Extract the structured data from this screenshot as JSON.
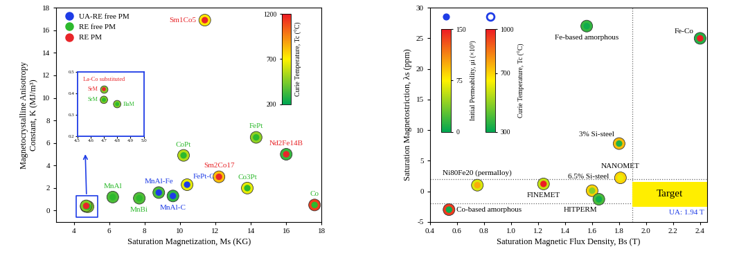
{
  "chart_data": [
    {
      "type": "scatter",
      "xlabel": "Saturation Magnetization, Ms (KG)",
      "ylabel": "Magnetocrystalline Anisotropy\nConstant, K (MJ/m³)",
      "xlim": [
        3,
        18
      ],
      "xticks": [
        4,
        6,
        8,
        10,
        12,
        14,
        16,
        18
      ],
      "ylim": [
        -1,
        18
      ],
      "yticks": [
        0,
        2,
        4,
        6,
        8,
        10,
        12,
        14,
        16,
        18
      ],
      "legend": "upper left",
      "series": [
        {
          "name": "UA-RE free PM",
          "color": "#1e3ce6",
          "x": [
            8.8,
            9.6,
            10.4
          ],
          "y": [
            1.6,
            1.3,
            2.3
          ],
          "labels": [
            "MnAl-Fe",
            "MnAl-C",
            "FePt-C"
          ],
          "curie_temperature": [
            350,
            300,
            650
          ]
        },
        {
          "name": "RE free PM",
          "color": "#2db92d",
          "x": [
            4.7,
            4.8,
            6.2,
            7.7,
            10.2,
            14.3,
            13.8,
            17.6
          ],
          "y": [
            0.37,
            0.35,
            1.2,
            1.1,
            4.9,
            6.5,
            2.0,
            0.5
          ],
          "labels": [
            null,
            null,
            "MnAl",
            "MnBi",
            "CoPt",
            "FePt",
            "Co3Pt",
            "Co"
          ],
          "curie_temperature": [
            450,
            450,
            350,
            360,
            550,
            480,
            650,
            1120
          ]
        },
        {
          "name": "RE PM",
          "color": "#e8262a",
          "x": [
            4.7,
            11.4,
            12.2,
            16.0
          ],
          "y": [
            0.42,
            16.9,
            3.0,
            5.0
          ],
          "labels": [
            null,
            "Sm1Co5",
            "Sm2Co17",
            "Nd2Fe14B"
          ],
          "curie_temperature": [
            450,
            720,
            820,
            310
          ]
        }
      ],
      "colorbars": {
        "curie_temperature": {
          "label": "Curie Temperature, Tc (°C)",
          "range": [
            200,
            1200
          ],
          "ticks": [
            200,
            700,
            1200
          ]
        }
      }
    },
    {
      "type": "scatter",
      "xlim": [
        4.5,
        5.0
      ],
      "xticks": [
        4.5,
        4.6,
        4.7,
        4.8,
        4.9,
        5.0
      ],
      "ylim": [
        0.2,
        0.5
      ],
      "yticks": [
        0.2,
        0.3,
        0.4,
        0.5
      ],
      "series": [
        {
          "name": "RE free PM",
          "color": "#2db92d",
          "x": [
            4.7,
            4.8
          ],
          "y": [
            0.37,
            0.35
          ],
          "labels": [
            "SrM",
            "BaM"
          ],
          "curie_temperature": [
            450,
            450
          ]
        },
        {
          "name": "RE PM",
          "color": "#e8262a",
          "x": [
            4.7
          ],
          "y": [
            0.42
          ],
          "labels": [
            "SrM"
          ],
          "annotation": "La-Co substituted",
          "curie_temperature": [
            450
          ]
        }
      ]
    },
    {
      "type": "scatter",
      "xlabel": "Saturation Magnetic Flux Density, Bs (T)",
      "ylabel": "Saturation Magnetostriction, λs (ppm)",
      "xlim": [
        0.4,
        2.45
      ],
      "xticks": [
        0.4,
        0.6,
        0.8,
        1.0,
        1.2,
        1.4,
        1.6,
        1.8,
        2.0,
        2.2,
        2.4
      ],
      "ylim": [
        -5,
        30
      ],
      "yticks": [
        -5,
        0,
        5,
        10,
        15,
        20,
        25,
        30
      ],
      "points": {
        "x": [
          1.56,
          2.4,
          1.8,
          1.81,
          1.6,
          1.65,
          1.24,
          0.75,
          0.54
        ],
        "y": [
          27,
          25,
          7.8,
          2.2,
          0.1,
          -1.3,
          1.2,
          1.0,
          -3.0
        ],
        "labels": [
          "Fe-based amorphous",
          "Fe-Co",
          "3% Si-steel",
          "NANOMET",
          "6.5% Si-steel",
          "HITPERM",
          "FINEMET",
          "Ni80Fe20 (permalloy)",
          "Co-based amorphous"
        ],
        "initial_permeability": [
          5,
          150,
          10,
          70,
          40,
          5,
          150,
          100,
          5
        ],
        "curie_temperature": [
          370,
          350,
          740,
          700,
          700,
          400,
          570,
          600,
          950
        ]
      },
      "reference_lines": {
        "x": [
          1.9
        ],
        "y": [
          -2,
          2
        ]
      },
      "target": {
        "label": "Target",
        "x": [
          1.9,
          2.45
        ],
        "y": [
          -2.5,
          1.5
        ]
      },
      "annotation": "UA: 1.94 T",
      "colorbars": {
        "initial_permeability": {
          "label": "Initial Permeability, μi (×10³)",
          "range": [
            0,
            150
          ],
          "ticks": [
            0,
            75,
            150
          ]
        },
        "curie_temperature": {
          "label": "Curie Temperature, Tc (°C)",
          "range": [
            300,
            1000
          ],
          "ticks": [
            300,
            700,
            1000
          ]
        }
      }
    }
  ]
}
